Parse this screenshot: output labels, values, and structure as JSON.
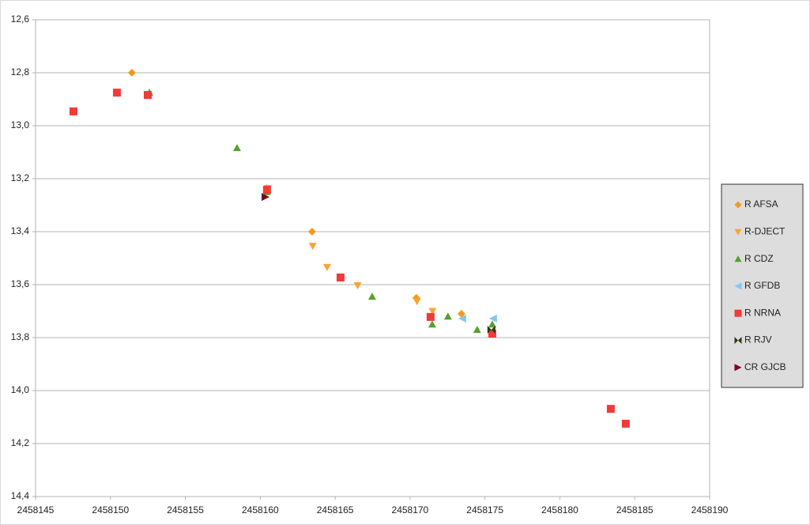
{
  "chart_data": {
    "type": "scatter",
    "xlim": [
      2458145,
      2458190
    ],
    "xticks": [
      2458145,
      2458150,
      2458155,
      2458160,
      2458165,
      2458170,
      2458175,
      2458180,
      2458185,
      2458190
    ],
    "ylim": [
      12.6,
      14.4
    ],
    "y_inverted": true,
    "yticks": [
      {
        "value": 12.6,
        "label": "12,6"
      },
      {
        "value": 12.8,
        "label": "12,8"
      },
      {
        "value": 13.0,
        "label": "13,0"
      },
      {
        "value": 13.2,
        "label": "13,2"
      },
      {
        "value": 13.4,
        "label": "13,4"
      },
      {
        "value": 13.6,
        "label": "13,6"
      },
      {
        "value": 13.8,
        "label": "13,8"
      },
      {
        "value": 14.0,
        "label": "14,0"
      },
      {
        "value": 14.2,
        "label": "14,2"
      },
      {
        "value": 14.4,
        "label": "14,4"
      }
    ],
    "grid": true,
    "legend": "right",
    "series": [
      {
        "name": "R AFSA",
        "color": "#f39a1e",
        "marker": "diamond",
        "x": [
          2458151.43,
          2458160.45,
          2458163.46,
          2458170.42,
          2458173.43
        ],
        "values": [
          12.8,
          13.236,
          13.4,
          13.65,
          13.71
        ]
      },
      {
        "name": "R-DJECT",
        "color": "#f7a531",
        "marker": "triangle-down",
        "x": [
          2458160.5,
          2458163.5,
          2458164.46,
          2458166.5,
          2458170.46,
          2458171.5
        ],
        "values": [
          13.236,
          13.454,
          13.534,
          13.603,
          13.663,
          13.7
        ]
      },
      {
        "name": "R CDZ",
        "color": "#57a02c",
        "marker": "triangle-up",
        "x": [
          2458152.6,
          2458158.45,
          2458160.45,
          2458167.47,
          2458171.48,
          2458172.53,
          2458174.48,
          2458175.49
        ],
        "values": [
          12.875,
          13.084,
          13.25,
          13.645,
          13.75,
          13.72,
          13.77,
          13.75
        ]
      },
      {
        "name": "R GFDB",
        "color": "#83c6f5",
        "marker": "triangle-left",
        "x": [
          2458173.48,
          2458175.54
        ],
        "values": [
          13.728,
          13.728
        ]
      },
      {
        "name": "R NRNA",
        "color": "#f23a3a",
        "marker": "square",
        "x": [
          2458147.53,
          2458150.43,
          2458152.49,
          2458160.45,
          2458165.36,
          2458171.37,
          2458175.49,
          2458183.4,
          2458184.4
        ],
        "values": [
          12.946,
          12.875,
          12.884,
          13.242,
          13.573,
          13.722,
          13.785,
          14.069,
          14.125
        ]
      },
      {
        "name": "R RJV",
        "color": "#2c3a0e",
        "marker": "bowtie",
        "x": [
          2458175.43
        ],
        "values": [
          13.77
        ]
      },
      {
        "name": "CR GJCB",
        "color": "#7e0021",
        "marker": "triangle-right",
        "x": [
          2458160.35
        ],
        "values": [
          13.269
        ]
      }
    ]
  }
}
